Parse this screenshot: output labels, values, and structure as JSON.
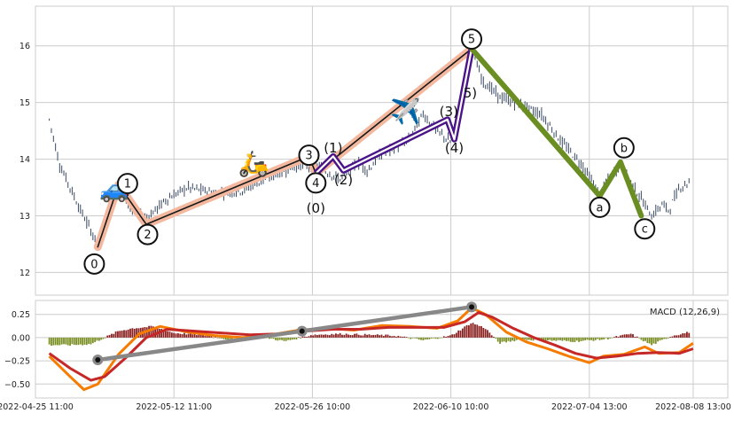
{
  "chart_data": [
    {
      "type": "candlestick",
      "title": "",
      "xlabel": "",
      "ylabel": "",
      "ylim": [
        11.6,
        16.7
      ],
      "yticks": [
        12,
        13,
        14,
        15,
        16
      ],
      "grid": true,
      "x_tick_labels": [
        "2022-04-25 11:00",
        "2022-05-12 11:00",
        "2022-05-26 10:00",
        "2022-06-10 10:00",
        "2022-07-04 13:00",
        "2022-08-08 13:00"
      ],
      "price_path": [
        {
          "t": 2.0,
          "v": 14.7
        },
        {
          "t": 3.5,
          "v": 13.9
        },
        {
          "t": 6.5,
          "v": 13.1
        },
        {
          "t": 9.0,
          "v": 12.5
        },
        {
          "t": 12.0,
          "v": 13.5
        },
        {
          "t": 14.0,
          "v": 13.1
        },
        {
          "t": 16.0,
          "v": 12.95
        },
        {
          "t": 19.0,
          "v": 13.3
        },
        {
          "t": 22.0,
          "v": 13.5
        },
        {
          "t": 26.0,
          "v": 13.4
        },
        {
          "t": 30.0,
          "v": 13.45
        },
        {
          "t": 34.0,
          "v": 13.7
        },
        {
          "t": 38.0,
          "v": 13.9
        },
        {
          "t": 41.0,
          "v": 13.85
        },
        {
          "t": 44.0,
          "v": 13.65
        },
        {
          "t": 46.5,
          "v": 13.95
        },
        {
          "t": 48.0,
          "v": 13.8
        },
        {
          "t": 50.0,
          "v": 14.1
        },
        {
          "t": 52.0,
          "v": 14.2
        },
        {
          "t": 54.0,
          "v": 14.35
        },
        {
          "t": 56.0,
          "v": 14.8
        },
        {
          "t": 58.0,
          "v": 14.5
        },
        {
          "t": 60.0,
          "v": 14.3
        },
        {
          "t": 62.0,
          "v": 15.3
        },
        {
          "t": 63.0,
          "v": 15.95
        },
        {
          "t": 64.5,
          "v": 15.4
        },
        {
          "t": 67.0,
          "v": 15.1
        },
        {
          "t": 70.0,
          "v": 14.95
        },
        {
          "t": 73.0,
          "v": 14.8
        },
        {
          "t": 76.0,
          "v": 14.3
        },
        {
          "t": 79.0,
          "v": 13.9
        },
        {
          "t": 81.5,
          "v": 13.35
        },
        {
          "t": 83.0,
          "v": 13.7
        },
        {
          "t": 84.5,
          "v": 13.9
        },
        {
          "t": 86.0,
          "v": 13.6
        },
        {
          "t": 88.0,
          "v": 13.2
        },
        {
          "t": 89.0,
          "v": 13.0
        },
        {
          "t": 90.5,
          "v": 13.2
        },
        {
          "t": 91.5,
          "v": 13.1
        },
        {
          "t": 93.0,
          "v": 13.5
        },
        {
          "t": 94.5,
          "v": 13.6
        }
      ],
      "wave_lines": [
        {
          "id": "primary-impulse",
          "color": "#f4b89e",
          "points": [
            [
              9,
              12.45
            ],
            [
              12,
              13.55
            ],
            [
              16,
              12.85
            ],
            [
              39.5,
              14.05
            ],
            [
              40.5,
              13.75
            ],
            [
              63,
              15.95
            ]
          ]
        },
        {
          "id": "primary-impulse-center",
          "color": "#1a1a1a",
          "points": [
            [
              9,
              12.45
            ],
            [
              12,
              13.55
            ],
            [
              16,
              12.85
            ],
            [
              39.5,
              14.05
            ],
            [
              40.5,
              13.75
            ],
            [
              63,
              15.95
            ]
          ]
        },
        {
          "id": "sub-impulse",
          "color": "#4b1488",
          "points": [
            [
              40.5,
              13.75
            ],
            [
              43,
              14.05
            ],
            [
              44.5,
              13.8
            ],
            [
              59.5,
              14.7
            ],
            [
              60.5,
              14.35
            ],
            [
              63,
              15.95
            ]
          ]
        },
        {
          "id": "correction",
          "color": "#6b8e23",
          "points": [
            [
              63,
              15.95
            ],
            [
              81.5,
              13.35
            ],
            [
              84.5,
              13.95
            ],
            [
              87.5,
              13.0
            ]
          ]
        }
      ],
      "wave_labels": [
        {
          "text": "0",
          "t": 8.5,
          "v": 12.15,
          "circled": true
        },
        {
          "text": "1",
          "t": 13.3,
          "v": 13.57,
          "circled": true
        },
        {
          "text": "2",
          "t": 16.2,
          "v": 12.67,
          "circled": true
        },
        {
          "text": "3",
          "t": 39.5,
          "v": 14.07,
          "circled": true
        },
        {
          "text": "4",
          "t": 40.5,
          "v": 13.58,
          "circled": true
        },
        {
          "text": "5",
          "t": 63.0,
          "v": 16.12,
          "circled": true
        },
        {
          "text": "a",
          "t": 81.5,
          "v": 13.15,
          "circled": true
        },
        {
          "text": "b",
          "t": 85.0,
          "v": 14.2,
          "circled": true
        },
        {
          "text": "c",
          "t": 88.0,
          "v": 12.77,
          "circled": true
        },
        {
          "text": "(0)",
          "t": 40.5,
          "v": 13.13,
          "circled": false
        },
        {
          "text": "(1)",
          "t": 43.0,
          "v": 14.2,
          "circled": false
        },
        {
          "text": "(2)",
          "t": 44.5,
          "v": 13.63,
          "circled": false
        },
        {
          "text": "(3)",
          "t": 59.7,
          "v": 14.84,
          "circled": false
        },
        {
          "text": "(4)",
          "t": 60.5,
          "v": 14.2,
          "circled": false
        },
        {
          "text": "5)",
          "t": 62.8,
          "v": 15.17,
          "circled": false
        }
      ],
      "emoji_markers": [
        {
          "name": "car-icon",
          "glyph": "🚙",
          "t": 11.5,
          "v": 13.45
        },
        {
          "name": "scooter-icon",
          "glyph": "🛵",
          "t": 31.5,
          "v": 13.9
        },
        {
          "name": "airplane-icon",
          "glyph": "✈️",
          "t": 53.5,
          "v": 14.82
        }
      ]
    },
    {
      "type": "bar+line",
      "title": "",
      "legend": [
        "MACD (12,26,9)"
      ],
      "legend_placement": "top-right",
      "ylim": [
        -0.65,
        0.4
      ],
      "yticks": [
        0.25,
        0.0,
        -0.25,
        -0.5
      ],
      "ytick_labels": [
        "0.25",
        "0.00",
        "−0.25",
        "−0.50"
      ],
      "grid": true,
      "histogram_path": [
        {
          "t": 2,
          "v": -0.08
        },
        {
          "t": 5,
          "v": -0.08
        },
        {
          "t": 8,
          "v": -0.07
        },
        {
          "t": 10,
          "v": 0.0
        },
        {
          "t": 12,
          "v": 0.07
        },
        {
          "t": 14,
          "v": 0.1
        },
        {
          "t": 17,
          "v": 0.12
        },
        {
          "t": 20,
          "v": 0.05
        },
        {
          "t": 24,
          "v": 0.03
        },
        {
          "t": 28,
          "v": -0.02
        },
        {
          "t": 32,
          "v": 0.02
        },
        {
          "t": 36,
          "v": -0.04
        },
        {
          "t": 40,
          "v": 0.03
        },
        {
          "t": 44,
          "v": 0.04
        },
        {
          "t": 48,
          "v": 0.03
        },
        {
          "t": 52,
          "v": 0.02
        },
        {
          "t": 56,
          "v": -0.03
        },
        {
          "t": 60,
          "v": 0.02
        },
        {
          "t": 63,
          "v": 0.16
        },
        {
          "t": 65,
          "v": 0.1
        },
        {
          "t": 67,
          "v": -0.06
        },
        {
          "t": 70,
          "v": -0.02
        },
        {
          "t": 74,
          "v": -0.03
        },
        {
          "t": 78,
          "v": -0.04
        },
        {
          "t": 82,
          "v": -0.02
        },
        {
          "t": 86,
          "v": 0.04
        },
        {
          "t": 89,
          "v": -0.08
        },
        {
          "t": 92,
          "v": 0.02
        },
        {
          "t": 94.5,
          "v": 0.06
        }
      ],
      "macd_path": [
        {
          "t": 2,
          "v": -0.2
        },
        {
          "t": 5,
          "v": -0.42
        },
        {
          "t": 7,
          "v": -0.56
        },
        {
          "t": 9,
          "v": -0.5
        },
        {
          "t": 12,
          "v": -0.18
        },
        {
          "t": 15,
          "v": 0.04
        },
        {
          "t": 18,
          "v": 0.12
        },
        {
          "t": 22,
          "v": 0.06
        },
        {
          "t": 26,
          "v": 0.02
        },
        {
          "t": 30,
          "v": 0.0
        },
        {
          "t": 34,
          "v": 0.03
        },
        {
          "t": 38,
          "v": 0.08
        },
        {
          "t": 42,
          "v": 0.1
        },
        {
          "t": 46,
          "v": 0.08
        },
        {
          "t": 50,
          "v": 0.13
        },
        {
          "t": 54,
          "v": 0.12
        },
        {
          "t": 58,
          "v": 0.1
        },
        {
          "t": 61,
          "v": 0.18
        },
        {
          "t": 63,
          "v": 0.32
        },
        {
          "t": 65,
          "v": 0.25
        },
        {
          "t": 68,
          "v": 0.06
        },
        {
          "t": 71,
          "v": -0.05
        },
        {
          "t": 74,
          "v": -0.12
        },
        {
          "t": 77,
          "v": -0.2
        },
        {
          "t": 80,
          "v": -0.27
        },
        {
          "t": 82,
          "v": -0.2
        },
        {
          "t": 85,
          "v": -0.18
        },
        {
          "t": 88,
          "v": -0.1
        },
        {
          "t": 90,
          "v": -0.17
        },
        {
          "t": 93,
          "v": -0.16
        },
        {
          "t": 95,
          "v": -0.06
        }
      ],
      "signal_path": [
        {
          "t": 2,
          "v": -0.17
        },
        {
          "t": 5,
          "v": -0.33
        },
        {
          "t": 8,
          "v": -0.46
        },
        {
          "t": 10,
          "v": -0.42
        },
        {
          "t": 13,
          "v": -0.22
        },
        {
          "t": 16,
          "v": 0.0
        },
        {
          "t": 19,
          "v": 0.09
        },
        {
          "t": 23,
          "v": 0.07
        },
        {
          "t": 27,
          "v": 0.05
        },
        {
          "t": 31,
          "v": 0.03
        },
        {
          "t": 35,
          "v": 0.04
        },
        {
          "t": 39,
          "v": 0.07
        },
        {
          "t": 43,
          "v": 0.09
        },
        {
          "t": 47,
          "v": 0.09
        },
        {
          "t": 51,
          "v": 0.11
        },
        {
          "t": 55,
          "v": 0.11
        },
        {
          "t": 59,
          "v": 0.11
        },
        {
          "t": 62,
          "v": 0.17
        },
        {
          "t": 64,
          "v": 0.27
        },
        {
          "t": 66,
          "v": 0.22
        },
        {
          "t": 69,
          "v": 0.1
        },
        {
          "t": 72,
          "v": 0.0
        },
        {
          "t": 75,
          "v": -0.08
        },
        {
          "t": 78,
          "v": -0.17
        },
        {
          "t": 81,
          "v": -0.22
        },
        {
          "t": 84,
          "v": -0.2
        },
        {
          "t": 87,
          "v": -0.17
        },
        {
          "t": 90,
          "v": -0.16
        },
        {
          "t": 93,
          "v": -0.17
        },
        {
          "t": 95,
          "v": -0.12
        }
      ],
      "divergence_line": {
        "color": "#888888",
        "points": [
          [
            9,
            -0.24
          ],
          [
            38.5,
            0.07
          ],
          [
            63,
            0.33
          ]
        ]
      }
    }
  ],
  "colors": {
    "background": "#ffffff",
    "plot_background": "#ffffff",
    "grid": "#cccccc",
    "candle": "#3a4a63",
    "macd_line": "#f57c00",
    "signal_line": "#c62828",
    "histogram_positive": "#8b2020",
    "histogram_negative": "#7a8f23",
    "label_ring": "#111111"
  }
}
